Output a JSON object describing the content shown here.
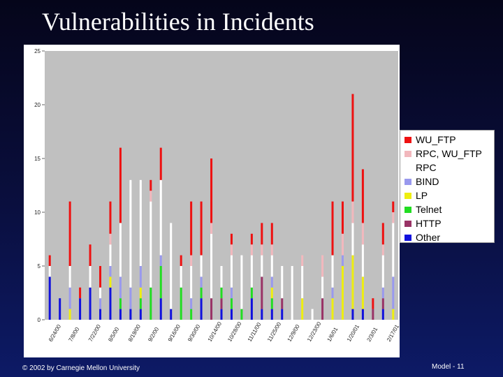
{
  "slide": {
    "title": "Vulnerabilities in Incidents",
    "footer_left": "© 2002 by Carnegie Mellon University",
    "footer_right": "Model - 11"
  },
  "chart_data": {
    "type": "bar",
    "stacked": true,
    "title": "",
    "xlabel": "",
    "ylabel": "",
    "ylim": [
      0,
      25
    ],
    "yticks": [
      0,
      5,
      10,
      15,
      20,
      25
    ],
    "grid": false,
    "legend_position": "right",
    "x_tick_labels": [
      "6/24/00",
      "7/8/00",
      "7/22/00",
      "8/5/00",
      "8/19/00",
      "9/2/00",
      "9/16/00",
      "9/30/00",
      "10/14/00",
      "10/28/00",
      "11/11/00",
      "11/25/00",
      "12/9/00",
      "12/23/00",
      "1/6/01",
      "1/20/01",
      "2/3/01",
      "2/17/01"
    ],
    "series_order_bottom_to_top": [
      "Other",
      "HTTP",
      "Telnet",
      "LP",
      "BIND",
      "RPC",
      "RPC, WU_FTP",
      "WU_FTP"
    ],
    "colors": {
      "WU_FTP": "#ee1111",
      "RPC, WU_FTP": "#f2b8bd",
      "RPC": "#ffffff",
      "BIND": "#9999ee",
      "LP": "#eeee11",
      "Telnet": "#22dd22",
      "HTTP": "#993366",
      "Other": "#1111dd"
    },
    "bars": [
      {
        "Other": 4,
        "RPC": 1,
        "WU_FTP": 1
      },
      {
        "Other": 2
      },
      {
        "LP": 1,
        "BIND": 2,
        "RPC": 2,
        "WU_FTP": 6
      },
      {
        "Other": 2,
        "WU_FTP": 1
      },
      {
        "Other": 3,
        "RPC": 2,
        "WU_FTP": 2
      },
      {
        "Other": 1,
        "BIND": 1,
        "RPC": 1,
        "WU_FTP": 2
      },
      {
        "Other": 3,
        "LP": 1,
        "BIND": 1,
        "RPC": 2,
        "RPC, WU_FTP": 1,
        "WU_FTP": 3
      },
      {
        "Other": 1,
        "Telnet": 1,
        "BIND": 2,
        "RPC": 5,
        "WU_FTP": 7
      },
      {
        "Other": 1,
        "BIND": 2,
        "RPC": 10
      },
      {
        "Other": 1,
        "Telnet": 1,
        "LP": 1,
        "BIND": 2,
        "RPC": 8
      },
      {
        "Telnet": 3,
        "RPC": 8,
        "RPC, WU_FTP": 1,
        "WU_FTP": 1
      },
      {
        "Other": 2,
        "Telnet": 3,
        "BIND": 1,
        "RPC": 7,
        "WU_FTP": 3
      },
      {
        "Other": 1,
        "RPC": 8
      },
      {
        "Telnet": 3,
        "RPC": 2,
        "WU_FTP": 1
      },
      {
        "Telnet": 1,
        "BIND": 1,
        "RPC": 3,
        "RPC, WU_FTP": 1,
        "WU_FTP": 5
      },
      {
        "Other": 2,
        "Telnet": 1,
        "BIND": 1,
        "RPC": 2,
        "WU_FTP": 5
      },
      {
        "HTTP": 2,
        "RPC": 6,
        "RPC, WU_FTP": 1,
        "WU_FTP": 6
      },
      {
        "Other": 1,
        "HTTP": 1,
        "Telnet": 1,
        "RPC": 2
      },
      {
        "Other": 1,
        "Telnet": 1,
        "BIND": 1,
        "RPC": 3,
        "RPC, WU_FTP": 1,
        "WU_FTP": 1
      },
      {
        "Telnet": 1,
        "RPC": 5
      },
      {
        "Other": 2,
        "Telnet": 1,
        "RPC": 3,
        "RPC, WU_FTP": 1,
        "WU_FTP": 1
      },
      {
        "Other": 1,
        "HTTP": 3,
        "RPC": 2,
        "RPC, WU_FTP": 1,
        "WU_FTP": 2
      },
      {
        "Other": 1,
        "LP": 1,
        "BIND": 1,
        "Telnet": 1,
        "RPC": 2,
        "RPC, WU_FTP": 1,
        "WU_FTP": 2
      },
      {
        "Other": 1,
        "HTTP": 1,
        "RPC": 3
      },
      {
        "RPC": 5
      },
      {
        "LP": 2,
        "RPC": 3,
        "RPC, WU_FTP": 1
      },
      {
        "RPC": 1
      },
      {
        "HTTP": 2,
        "RPC": 2,
        "RPC, WU_FTP": 2
      },
      {
        "LP": 2,
        "BIND": 1,
        "RPC": 3,
        "WU_FTP": 5
      },
      {
        "LP": 5,
        "BIND": 1,
        "RPC, WU_FTP": 2,
        "WU_FTP": 3
      },
      {
        "Other": 1,
        "LP": 5,
        "RPC": 3,
        "RPC, WU_FTP": 2,
        "WU_FTP": 10
      },
      {
        "Other": 1,
        "LP": 3,
        "RPC": 3,
        "RPC, WU_FTP": 2,
        "WU_FTP": 5
      },
      {
        "HTTP": 1,
        "WU_FTP": 1
      },
      {
        "Other": 1,
        "HTTP": 1,
        "BIND": 1,
        "RPC": 3,
        "RPC, WU_FTP": 1,
        "WU_FTP": 2
      },
      {
        "LP": 1,
        "BIND": 3,
        "RPC": 5,
        "RPC, WU_FTP": 1,
        "WU_FTP": 1
      }
    ]
  },
  "legend": {
    "items": [
      {
        "label": "WU_FTP",
        "color": "#ee1111"
      },
      {
        "label": "RPC, WU_FTP",
        "color": "#f2b8bd"
      },
      {
        "label": "RPC",
        "color": "#ffffff"
      },
      {
        "label": "BIND",
        "color": "#9999ee"
      },
      {
        "label": "LP",
        "color": "#eeee11"
      },
      {
        "label": "Telnet",
        "color": "#22dd22"
      },
      {
        "label": "HTTP",
        "color": "#993366"
      },
      {
        "label": "Other",
        "color": "#1111dd"
      }
    ]
  }
}
